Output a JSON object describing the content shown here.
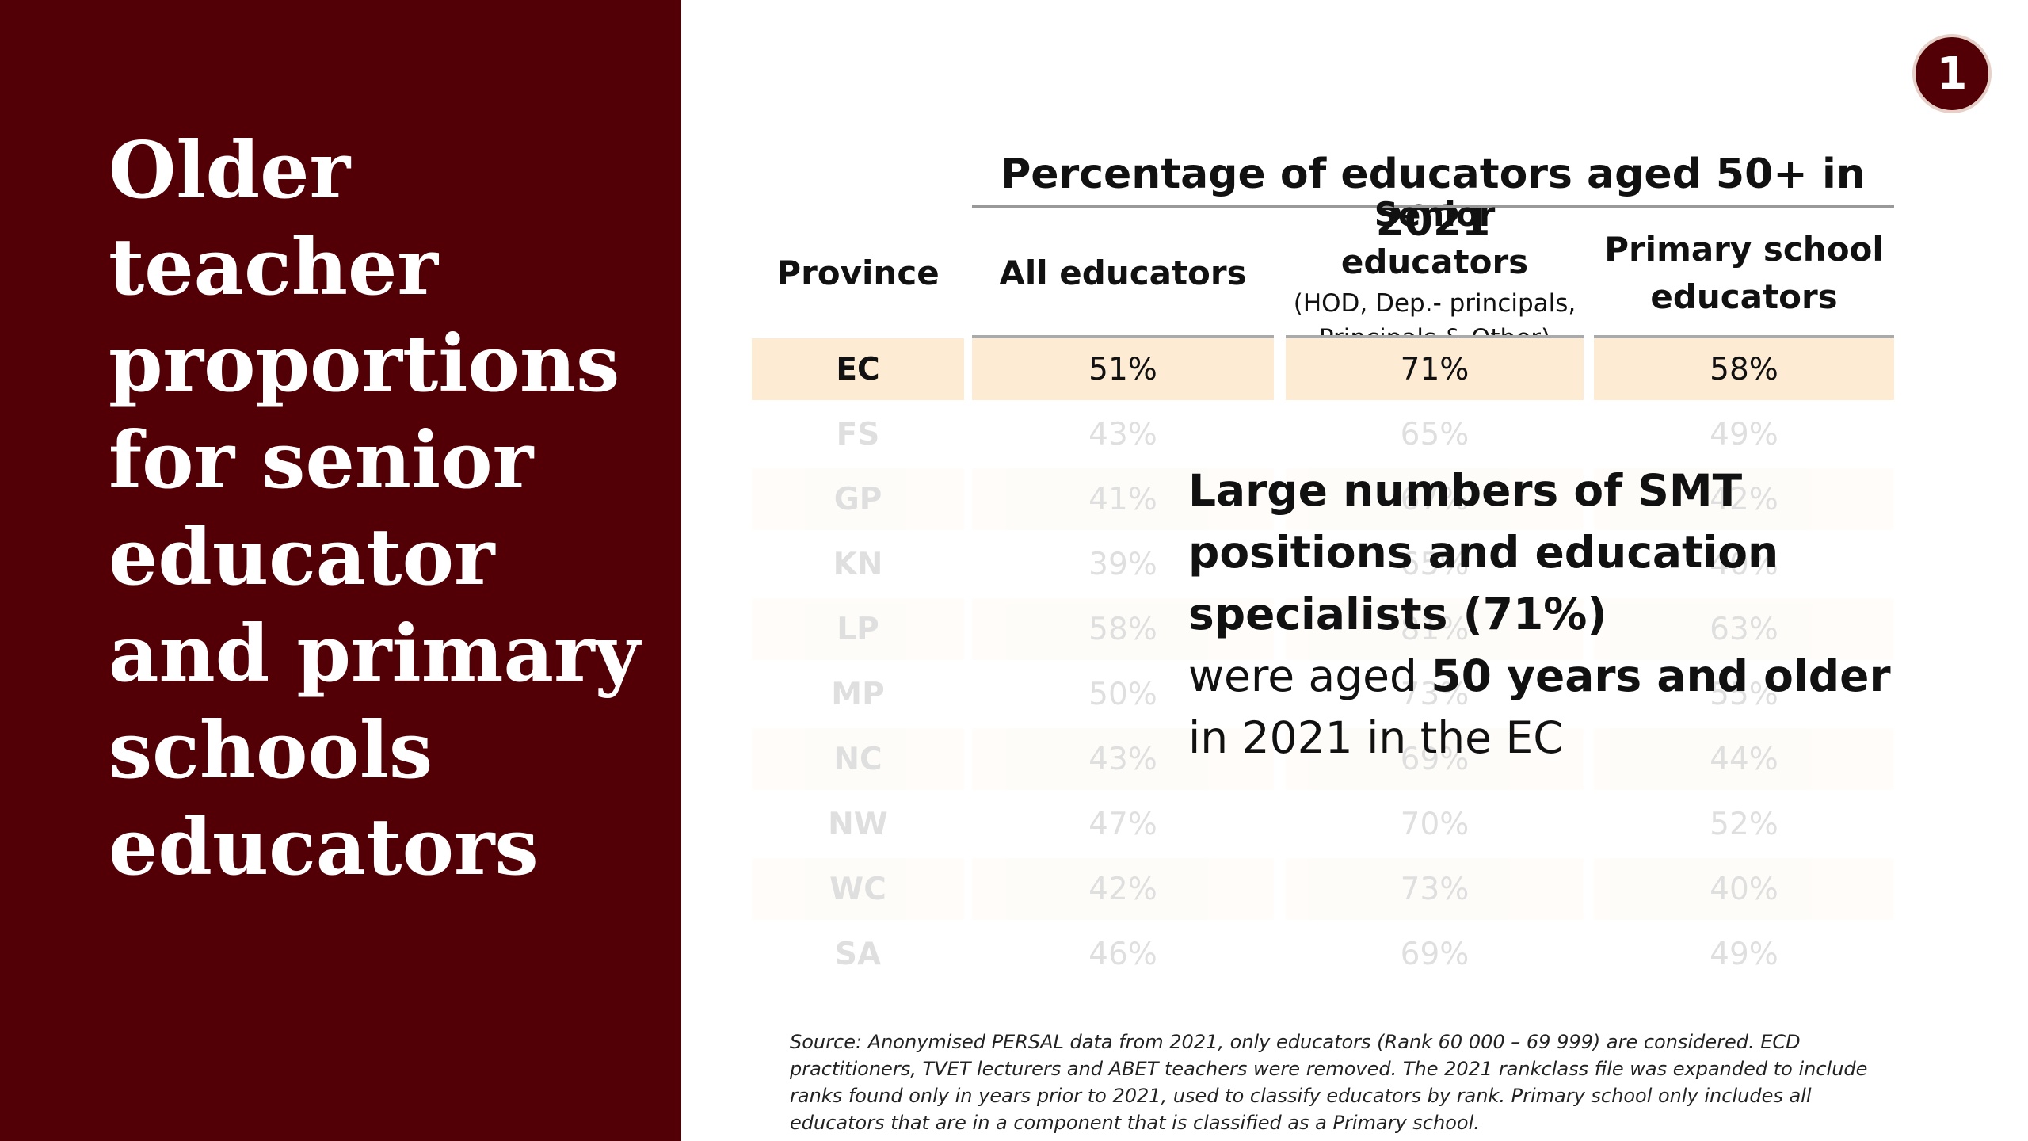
{
  "sidebar": {
    "title": "Older teacher proportions for senior educator and primary schools educators"
  },
  "badge": "1",
  "table": {
    "title": "Percentage of educators aged 50+ in 2021",
    "headers": [
      "Province",
      "All educators",
      "Senior educators",
      "Primary school educators"
    ],
    "header_note": "(HOD, Dep.- principals, Principals & Other)",
    "rows": [
      [
        "EC",
        "51%",
        "71%",
        "58%"
      ],
      [
        "FS",
        "43%",
        "65%",
        "49%"
      ],
      [
        "GP",
        "41%",
        "67%",
        "42%"
      ],
      [
        "KN",
        "39%",
        "65%",
        "40%"
      ],
      [
        "LP",
        "58%",
        "81%",
        "63%"
      ],
      [
        "MP",
        "50%",
        "73%",
        "55%"
      ],
      [
        "NC",
        "43%",
        "69%",
        "44%"
      ],
      [
        "NW",
        "47%",
        "70%",
        "52%"
      ],
      [
        "WC",
        "42%",
        "73%",
        "40%"
      ],
      [
        "SA",
        "46%",
        "69%",
        "49%"
      ]
    ]
  },
  "callout": {
    "segments": [
      "Large numbers of SMT positions and education specialists (71%)",
      "were aged ",
      "50 years and older",
      " in 2021 in the EC"
    ]
  },
  "source": "Source: Anonymised PERSAL data from 2021, only educators (Rank 60 000 – 69 999) are considered. ECD practitioners, TVET lecturers and ABET teachers were removed. The 2021 rankclass file was expanded to include ranks found only in years prior to 2021, used to classify educators by rank. Primary school only includes all educators that are in a component that is classified as a Primary school."
}
